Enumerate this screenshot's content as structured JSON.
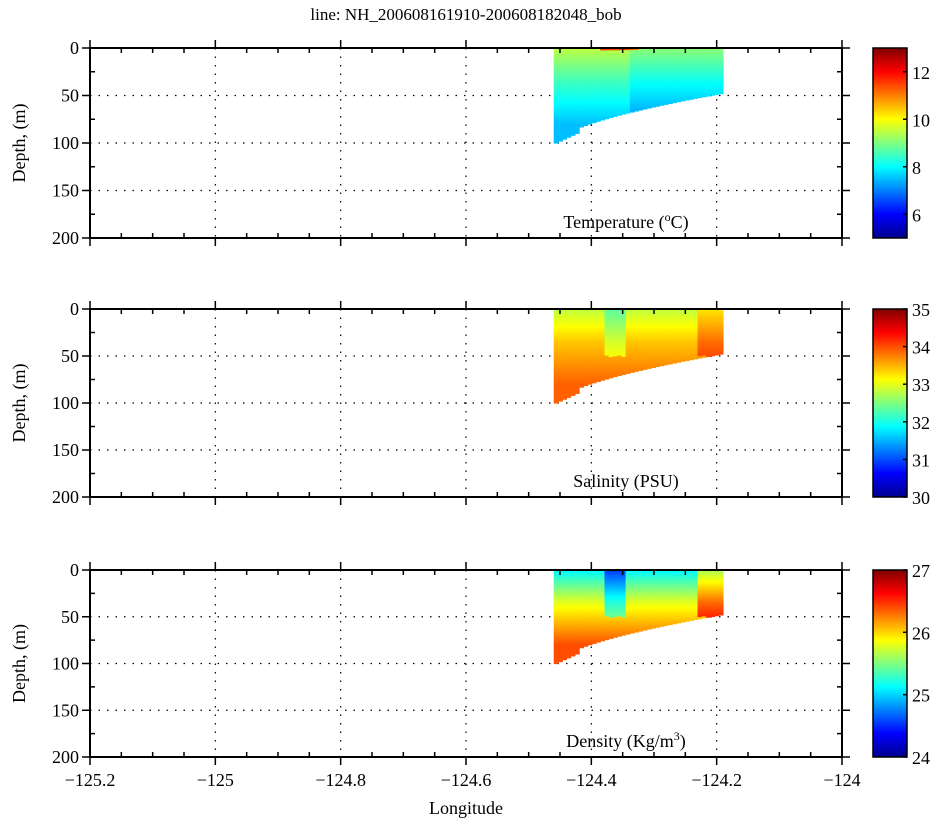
{
  "title": "line: NH_200608161910-200608182048_bob",
  "xlabel": "Longitude",
  "x_ticks": [
    "−125.2",
    "−125",
    "−124.8",
    "−124.6",
    "−124.4",
    "−124.2",
    "−124"
  ],
  "chart_data": [
    {
      "type": "heatmap",
      "variable": "Temperature",
      "label": "Temperature (",
      "label_sup": "o",
      "label_end": "C)",
      "xlabel": "Longitude",
      "ylabel": "Depth, (m)",
      "xlim": [
        -125.2,
        -124.0
      ],
      "ylim": [
        200,
        0
      ],
      "y_ticks": [
        "0",
        "50",
        "100",
        "150",
        "200"
      ],
      "y_tick_values": [
        0,
        50,
        100,
        150,
        200
      ],
      "colorbar": {
        "range": [
          5,
          13
        ],
        "ticks": [
          6,
          8,
          10,
          12
        ],
        "tick_labels": [
          "6",
          "8",
          "10",
          "12"
        ]
      },
      "data_extent": {
        "lon_range": [
          -124.46,
          -124.19
        ],
        "max_depth_west": 100,
        "max_depth_east": 48
      },
      "values_approx": {
        "surface": 9.5,
        "mid": 8.5,
        "bottom": 7.5,
        "surface_max": 11.5
      },
      "grid": true
    },
    {
      "type": "heatmap",
      "variable": "Salinity",
      "label": "Salinity (PSU)",
      "xlabel": "Longitude",
      "ylabel": "Depth, (m)",
      "xlim": [
        -125.2,
        -124.0
      ],
      "ylim": [
        200,
        0
      ],
      "y_ticks": [
        "0",
        "50",
        "100",
        "150",
        "200"
      ],
      "y_tick_values": [
        0,
        50,
        100,
        150,
        200
      ],
      "colorbar": {
        "range": [
          30,
          35
        ],
        "ticks": [
          30,
          31,
          32,
          33,
          34,
          35
        ],
        "tick_labels": [
          "30",
          "31",
          "32",
          "33",
          "34",
          "35"
        ]
      },
      "data_extent": {
        "lon_range": [
          -124.46,
          -124.19
        ],
        "max_depth_west": 100,
        "max_depth_east": 48
      },
      "values_approx": {
        "surface": 32.8,
        "mid": 33.4,
        "bottom": 33.9
      },
      "grid": true
    },
    {
      "type": "heatmap",
      "variable": "Density",
      "label": "Density (Kg/m",
      "label_sup": "3",
      "label_end": ")",
      "xlabel": "Longitude",
      "ylabel": "Depth, (m)",
      "xlim": [
        -125.2,
        -124.0
      ],
      "ylim": [
        200,
        0
      ],
      "y_ticks": [
        "0",
        "50",
        "100",
        "150",
        "200"
      ],
      "y_tick_values": [
        0,
        50,
        100,
        150,
        200
      ],
      "colorbar": {
        "range": [
          24,
          27
        ],
        "ticks": [
          24,
          25,
          26,
          27
        ],
        "tick_labels": [
          "24",
          "25",
          "26",
          "27"
        ]
      },
      "data_extent": {
        "lon_range": [
          -124.46,
          -124.19
        ],
        "max_depth_west": 100,
        "max_depth_east": 48
      },
      "values_approx": {
        "surface": 25.1,
        "mid": 25.8,
        "bottom": 26.4
      },
      "grid": true
    }
  ]
}
